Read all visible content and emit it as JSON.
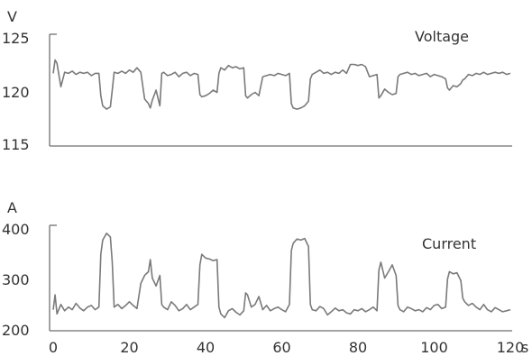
{
  "chart_data": [
    {
      "type": "line",
      "unit": "V",
      "label": "Voltage",
      "ylim": [
        115,
        125
      ],
      "yticks": [
        "125",
        "120",
        "115"
      ],
      "xlim": [
        0,
        120
      ],
      "grid": false,
      "color": "#7a7a7a",
      "x": [
        0,
        0.5,
        1,
        2,
        3,
        4,
        5,
        6,
        7,
        8,
        9,
        10,
        11,
        12,
        12.5,
        13,
        14,
        15,
        15.5,
        16,
        17,
        18,
        19,
        20,
        21,
        22,
        23,
        24,
        25,
        25.5,
        26,
        27,
        28,
        28.5,
        29,
        30,
        31,
        32,
        33,
        34,
        35,
        36,
        37,
        38,
        38.5,
        39,
        40,
        41,
        42,
        43,
        43.5,
        44,
        45,
        46,
        47,
        48,
        49,
        50,
        50.5,
        51,
        52,
        53,
        54,
        55,
        56,
        57,
        58,
        59,
        60,
        61,
        62,
        62.5,
        63,
        64,
        65,
        66,
        67,
        67.5,
        68,
        69,
        70,
        71,
        72,
        73,
        74,
        75,
        76,
        77,
        78,
        79,
        80,
        81,
        82,
        83,
        84,
        85,
        85.5,
        86,
        87,
        88,
        89,
        90,
        90.5,
        91,
        92,
        93,
        94,
        95,
        96,
        97,
        98,
        99,
        100,
        101,
        102,
        103,
        103.5,
        104,
        105,
        106,
        107,
        107.5,
        108,
        109,
        110,
        111,
        112,
        113,
        114,
        115,
        116,
        117,
        118,
        119,
        120
      ],
      "values": [
        121.5,
        122.7,
        122.4,
        120.3,
        121.6,
        121.5,
        121.7,
        121.4,
        121.6,
        121.5,
        121.6,
        121.3,
        121.5,
        121.5,
        119.5,
        118.6,
        118.3,
        118.5,
        120.0,
        121.6,
        121.5,
        121.7,
        121.5,
        121.8,
        121.6,
        122.0,
        121.6,
        119.2,
        118.8,
        118.4,
        119.1,
        120.0,
        118.6,
        121.5,
        121.6,
        121.3,
        121.4,
        121.6,
        121.2,
        121.5,
        121.6,
        121.3,
        121.5,
        121.4,
        119.6,
        119.4,
        119.5,
        119.7,
        120.0,
        119.8,
        121.5,
        122.0,
        121.8,
        122.2,
        122.0,
        122.1,
        121.9,
        122.0,
        119.5,
        119.3,
        119.6,
        119.8,
        119.5,
        121.2,
        121.3,
        121.4,
        121.3,
        121.5,
        121.4,
        121.3,
        121.5,
        118.8,
        118.4,
        118.3,
        118.4,
        118.6,
        119.0,
        121.0,
        121.4,
        121.6,
        121.8,
        121.5,
        121.6,
        121.4,
        121.6,
        121.5,
        121.8,
        121.5,
        122.3,
        122.3,
        122.2,
        122.3,
        122.1,
        121.2,
        121.3,
        121.4,
        119.3,
        119.5,
        120.1,
        119.8,
        119.6,
        119.7,
        121.2,
        121.4,
        121.5,
        121.6,
        121.4,
        121.5,
        121.3,
        121.4,
        121.5,
        121.2,
        121.4,
        121.3,
        121.2,
        121.0,
        120.2,
        120.0,
        120.4,
        120.3,
        120.6,
        120.9,
        121.0,
        121.4,
        121.3,
        121.5,
        121.4,
        121.6,
        121.4,
        121.5,
        121.6,
        121.5,
        121.6,
        121.4,
        121.5
      ]
    },
    {
      "type": "line",
      "unit": "A",
      "label": "Current",
      "ylim": [
        200,
        400
      ],
      "yticks": [
        "400",
        "300",
        "200"
      ],
      "xlim": [
        0,
        120
      ],
      "xticks": [
        "0",
        "20",
        "40",
        "60",
        "80",
        "100",
        "120"
      ],
      "xunit": "s",
      "grid": false,
      "color": "#7a7a7a",
      "x": [
        0,
        0.5,
        1,
        2,
        3,
        4,
        5,
        6,
        7,
        8,
        9,
        10,
        11,
        12,
        12.5,
        13,
        14,
        15,
        15.5,
        16,
        17,
        18,
        19,
        20,
        21,
        22,
        23,
        24,
        25,
        25.5,
        26,
        27,
        28,
        28.5,
        29,
        30,
        31,
        32,
        33,
        34,
        35,
        36,
        37,
        38,
        38.5,
        39,
        40,
        41,
        42,
        43,
        43.5,
        44,
        45,
        46,
        47,
        48,
        49,
        50,
        50.5,
        51,
        52,
        53,
        54,
        55,
        56,
        57,
        58,
        59,
        60,
        61,
        62,
        62.5,
        63,
        64,
        65,
        66,
        67,
        67.5,
        68,
        69,
        70,
        71,
        72,
        73,
        74,
        75,
        76,
        77,
        78,
        79,
        80,
        81,
        82,
        83,
        84,
        85,
        85.5,
        86,
        87,
        88,
        89,
        90,
        90.5,
        91,
        92,
        93,
        94,
        95,
        96,
        97,
        98,
        99,
        100,
        101,
        102,
        103,
        103.5,
        104,
        105,
        106,
        107,
        107.5,
        108,
        109,
        110,
        111,
        112,
        113,
        114,
        115,
        116,
        117,
        118,
        119,
        120
      ],
      "values": [
        240,
        268,
        232,
        250,
        238,
        245,
        240,
        252,
        243,
        238,
        245,
        248,
        240,
        245,
        345,
        372,
        385,
        378,
        330,
        245,
        250,
        242,
        248,
        255,
        248,
        242,
        290,
        305,
        312,
        335,
        300,
        285,
        305,
        250,
        245,
        240,
        255,
        248,
        238,
        242,
        250,
        240,
        245,
        250,
        325,
        345,
        338,
        336,
        333,
        335,
        245,
        232,
        225,
        238,
        242,
        235,
        230,
        238,
        272,
        268,
        245,
        250,
        265,
        240,
        248,
        238,
        242,
        245,
        240,
        236,
        250,
        352,
        366,
        374,
        372,
        375,
        360,
        250,
        240,
        238,
        246,
        242,
        230,
        236,
        243,
        238,
        240,
        234,
        232,
        240,
        238,
        242,
        236,
        240,
        245,
        238,
        315,
        330,
        300,
        312,
        325,
        305,
        248,
        240,
        236,
        245,
        242,
        238,
        240,
        236,
        244,
        240,
        248,
        250,
        242,
        245,
        298,
        312,
        308,
        310,
        295,
        262,
        255,
        248,
        252,
        245,
        240,
        250,
        240,
        236,
        244,
        240,
        236,
        238,
        240
      ]
    }
  ]
}
